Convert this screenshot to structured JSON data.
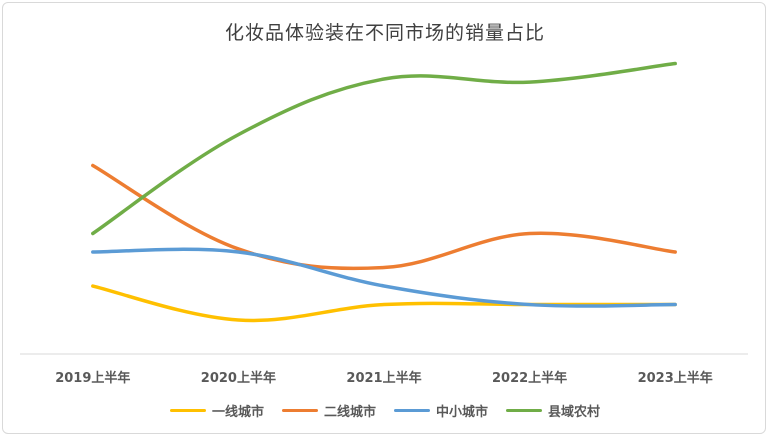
{
  "chart_data": {
    "type": "line",
    "title": "化妆品体验装在不同市场的销量占比",
    "categories": [
      "2019上半年",
      "2020上半年",
      "2021上半年",
      "2022上半年",
      "2023上半年"
    ],
    "ylim": [
      0,
      1
    ],
    "grid": false,
    "smooth": true,
    "legend_position": "bottom",
    "series": [
      {
        "name": "一线城市",
        "color": "#FFC000",
        "values": [
          0.22,
          0.11,
          0.16,
          0.16,
          0.16
        ]
      },
      {
        "name": "二线城市",
        "color": "#ED7D31",
        "values": [
          0.61,
          0.34,
          0.28,
          0.39,
          0.33
        ]
      },
      {
        "name": "中小城市",
        "color": "#5B9BD5",
        "values": [
          0.33,
          0.33,
          0.22,
          0.16,
          0.16
        ]
      },
      {
        "name": "县域农村",
        "color": "#70AD47",
        "values": [
          0.39,
          0.71,
          0.89,
          0.88,
          0.94
        ]
      }
    ]
  }
}
